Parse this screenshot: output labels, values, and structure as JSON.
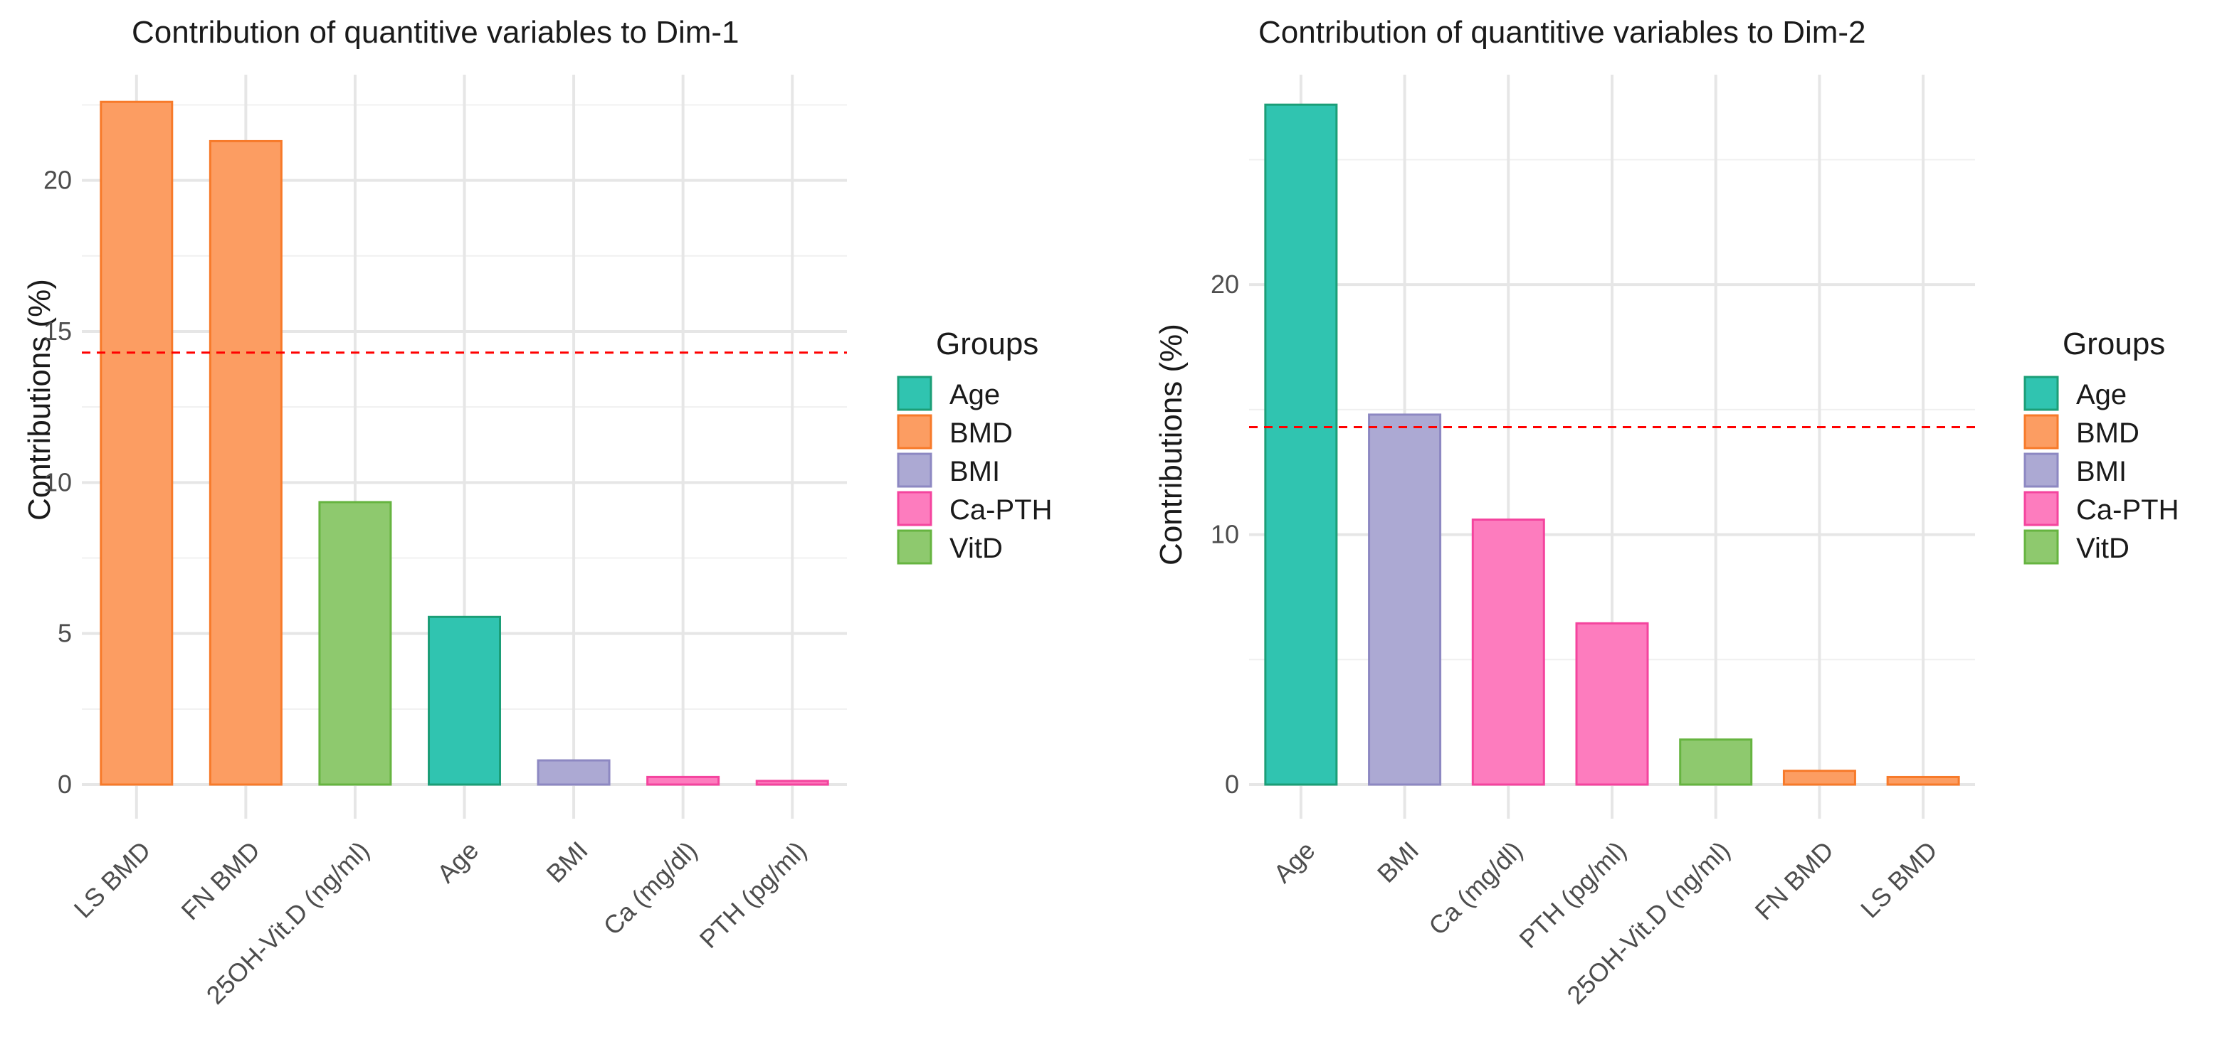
{
  "chart_data": [
    {
      "type": "bar",
      "title": "Contribution of quantitive variables to Dim-1",
      "xlabel": "",
      "ylabel": "Contributions (%)",
      "ylim": [
        0,
        23.5
      ],
      "yticks": [
        0,
        5,
        10,
        15,
        20
      ],
      "reference_line": 14.3,
      "grid": true,
      "categories": [
        "LS BMD",
        "FN BMD",
        "25OH-Vit.D (ng/ml)",
        "Age",
        "BMI",
        "Ca (mg/dl)",
        "PTH (pg/ml)"
      ],
      "values": [
        22.6,
        21.3,
        9.35,
        5.55,
        0.8,
        0.25,
        0.12
      ],
      "groups": [
        "BMD",
        "BMD",
        "VitD",
        "Age",
        "BMI",
        "Ca-PTH",
        "Ca-PTH"
      ],
      "legend": {
        "title": "Groups",
        "position": "right",
        "entries": [
          "Age",
          "BMD",
          "BMI",
          "Ca-PTH",
          "VitD"
        ]
      }
    },
    {
      "type": "bar",
      "title": "Contribution of quantitive variables to Dim-2",
      "xlabel": "",
      "ylabel": "Contributions (%)",
      "ylim": [
        0,
        28.4
      ],
      "yticks": [
        0,
        10,
        20
      ],
      "reference_line": 14.3,
      "grid": true,
      "categories": [
        "Age",
        "BMI",
        "Ca (mg/dl)",
        "PTH (pg/ml)",
        "25OH-Vit.D (ng/ml)",
        "FN BMD",
        "LS BMD"
      ],
      "values": [
        27.2,
        14.8,
        10.6,
        6.45,
        1.8,
        0.55,
        0.3
      ],
      "groups": [
        "Age",
        "BMI",
        "Ca-PTH",
        "Ca-PTH",
        "VitD",
        "BMD",
        "BMD"
      ],
      "legend": {
        "title": "Groups",
        "position": "right",
        "entries": [
          "Age",
          "BMD",
          "BMI",
          "Ca-PTH",
          "VitD"
        ]
      }
    }
  ],
  "colors": {
    "Age": {
      "fill": "#30c4b0",
      "stroke": "#1b9e77"
    },
    "BMD": {
      "fill": "#fc9d62",
      "stroke": "#f77a2a"
    },
    "BMI": {
      "fill": "#aca9d3",
      "stroke": "#8d88c2"
    },
    "Ca-PTH": {
      "fill": "#fd7cbe",
      "stroke": "#f4449e"
    },
    "VitD": {
      "fill": "#8ec96e",
      "stroke": "#66b440"
    },
    "reference_line": "#ff0000"
  }
}
